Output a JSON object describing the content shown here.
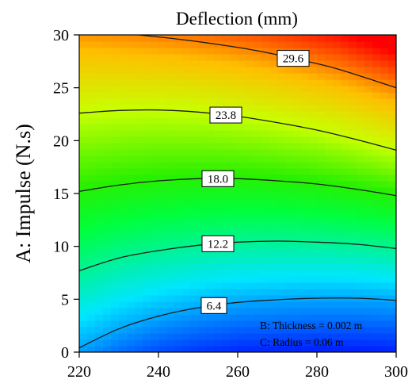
{
  "chart_data": {
    "type": "contour",
    "title": "Deflection (mm)",
    "ylabel": "A: Impulse (N.s)",
    "xlabel": "",
    "xlim": [
      220,
      300
    ],
    "ylim": [
      0,
      30
    ],
    "x_ticks": [
      "220",
      "240",
      "260",
      "280",
      "300"
    ],
    "y_ticks": [
      "0",
      "5",
      "10",
      "15",
      "20",
      "25",
      "30"
    ],
    "grid": false,
    "color_range": [
      0.5,
      33
    ],
    "contours": [
      {
        "label": "6.4",
        "label_x": 254,
        "points": [
          [
            220,
            0.4
          ],
          [
            230,
            2.2
          ],
          [
            240,
            3.4
          ],
          [
            250,
            4.2
          ],
          [
            260,
            4.7
          ],
          [
            270,
            4.95
          ],
          [
            280,
            5.1
          ],
          [
            290,
            5.1
          ],
          [
            300,
            4.9
          ]
        ]
      },
      {
        "label": "12.2",
        "label_x": 255,
        "points": [
          [
            220,
            7.7
          ],
          [
            230,
            8.9
          ],
          [
            240,
            9.6
          ],
          [
            250,
            10.1
          ],
          [
            260,
            10.4
          ],
          [
            270,
            10.5
          ],
          [
            280,
            10.4
          ],
          [
            290,
            10.2
          ],
          [
            300,
            9.8
          ]
        ]
      },
      {
        "label": "18.0",
        "label_x": 255,
        "points": [
          [
            220,
            15.2
          ],
          [
            230,
            15.8
          ],
          [
            240,
            16.2
          ],
          [
            250,
            16.4
          ],
          [
            260,
            16.4
          ],
          [
            270,
            16.2
          ],
          [
            280,
            15.9
          ],
          [
            290,
            15.4
          ],
          [
            300,
            14.8
          ]
        ]
      },
      {
        "label": "23.8",
        "label_x": 257,
        "points": [
          [
            220,
            22.6
          ],
          [
            230,
            22.85
          ],
          [
            240,
            22.9
          ],
          [
            250,
            22.7
          ],
          [
            260,
            22.3
          ],
          [
            270,
            21.7
          ],
          [
            280,
            21.0
          ],
          [
            290,
            20.1
          ],
          [
            300,
            19.1
          ]
        ]
      },
      {
        "label": "29.6",
        "label_x": 274,
        "points": [
          [
            235,
            30.0
          ],
          [
            245,
            29.6
          ],
          [
            255,
            29.1
          ],
          [
            265,
            28.5
          ],
          [
            275,
            27.7
          ],
          [
            285,
            26.8
          ],
          [
            300,
            25.0
          ]
        ]
      }
    ],
    "annotations": [
      "B: Thickness = 0.002 m",
      "C: Radius = 0.06 m"
    ]
  }
}
